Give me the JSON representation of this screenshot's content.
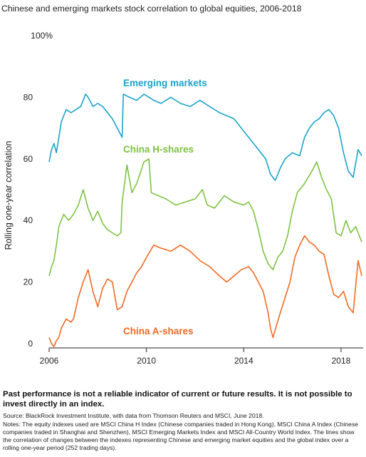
{
  "chart_data": {
    "type": "line",
    "title": "Chinese and emerging markets stock correlation to global equities, 2006-2018",
    "ylabel": "Rolling one-year correlation",
    "xlabel": "",
    "xlim": [
      2006.0,
      2018.85
    ],
    "ylim": [
      0,
      100
    ],
    "x_ticks": [
      "2006",
      "2010",
      "2014",
      "2018"
    ],
    "y_ticks": [
      "0",
      "20",
      "40",
      "60",
      "80",
      "100%"
    ],
    "grid": false,
    "legend": "inline labels",
    "series": [
      {
        "name": "Emerging markets",
        "color": "#1aa3c9",
        "x": [
          2006.0,
          2006.1,
          2006.2,
          2006.3,
          2006.4,
          2006.5,
          2006.6,
          2006.7,
          2006.9,
          2007.1,
          2007.3,
          2007.5,
          2007.6,
          2007.8,
          2008.0,
          2008.2,
          2008.4,
          2008.6,
          2008.8,
          2009.0,
          2009.05,
          2009.3,
          2009.6,
          2009.9,
          2010.1,
          2010.3,
          2010.6,
          2011.0,
          2011.4,
          2011.8,
          2012.2,
          2012.6,
          2013.0,
          2013.3,
          2013.6,
          2013.9,
          2014.1,
          2014.3,
          2014.6,
          2014.9,
          2015.1,
          2015.3,
          2015.5,
          2015.7,
          2016.0,
          2016.3,
          2016.5,
          2016.7,
          2016.9,
          2017.1,
          2017.3,
          2017.5,
          2017.7,
          2017.9,
          2018.1,
          2018.3,
          2018.5,
          2018.7,
          2018.85
        ],
        "values": [
          59,
          63,
          65,
          62,
          67,
          72,
          74,
          76,
          75,
          76,
          77,
          81,
          80,
          77,
          78,
          77,
          75,
          73,
          70,
          67,
          81,
          80,
          79,
          81,
          80,
          79,
          78,
          80,
          78,
          77,
          79,
          77,
          75,
          74,
          73,
          70,
          68,
          66,
          63,
          60,
          55,
          53,
          57,
          60,
          62,
          61,
          67,
          70,
          72,
          73,
          75,
          76,
          74,
          70,
          62,
          56,
          54,
          63,
          61
        ]
      },
      {
        "name": "China H-shares",
        "color": "#7ec242",
        "x": [
          2006.0,
          2006.1,
          2006.2,
          2006.3,
          2006.4,
          2006.5,
          2006.6,
          2006.8,
          2007.0,
          2007.2,
          2007.4,
          2007.6,
          2007.8,
          2008.0,
          2008.2,
          2008.4,
          2008.6,
          2008.8,
          2008.95,
          2009.0,
          2009.2,
          2009.4,
          2009.6,
          2009.9,
          2010.1,
          2010.2,
          2010.5,
          2010.8,
          2011.2,
          2011.6,
          2012.0,
          2012.3,
          2012.5,
          2012.8,
          2013.2,
          2013.6,
          2014.0,
          2014.2,
          2014.4,
          2014.6,
          2014.8,
          2015.0,
          2015.2,
          2015.4,
          2015.6,
          2015.8,
          2016.0,
          2016.2,
          2016.5,
          2016.8,
          2017.0,
          2017.2,
          2017.4,
          2017.6,
          2017.8,
          2018.0,
          2018.2,
          2018.4,
          2018.6,
          2018.85
        ],
        "values": [
          22,
          25,
          27,
          32,
          38,
          40,
          42,
          40,
          42,
          45,
          50,
          44,
          40,
          43,
          39,
          37,
          36,
          35,
          36,
          46,
          58,
          49,
          52,
          59,
          60,
          49,
          48,
          47,
          45,
          46,
          47,
          50,
          45,
          44,
          48,
          46,
          45,
          46,
          43,
          37,
          30,
          26,
          24,
          28,
          30,
          35,
          43,
          49,
          52,
          56,
          59,
          54,
          50,
          47,
          36,
          35,
          40,
          36,
          38,
          33
        ]
      },
      {
        "name": "China A-shares",
        "color": "#f06a24",
        "x": [
          2006.0,
          2006.1,
          2006.2,
          2006.3,
          2006.4,
          2006.5,
          2006.7,
          2006.9,
          2007.0,
          2007.2,
          2007.4,
          2007.6,
          2007.8,
          2008.0,
          2008.2,
          2008.4,
          2008.6,
          2008.8,
          2009.0,
          2009.2,
          2009.4,
          2009.6,
          2009.8,
          2010.0,
          2010.3,
          2010.6,
          2011.0,
          2011.4,
          2011.8,
          2012.2,
          2012.6,
          2013.0,
          2013.3,
          2013.6,
          2013.9,
          2014.2,
          2014.4,
          2014.6,
          2014.8,
          2015.0,
          2015.1,
          2015.2,
          2015.35,
          2015.5,
          2015.7,
          2015.9,
          2016.1,
          2016.3,
          2016.5,
          2016.7,
          2016.9,
          2017.1,
          2017.3,
          2017.5,
          2017.7,
          2017.9,
          2018.1,
          2018.3,
          2018.5,
          2018.7,
          2018.85
        ],
        "values": [
          2,
          0,
          -1,
          1,
          2,
          5,
          8,
          7,
          8,
          15,
          20,
          24,
          17,
          12,
          18,
          21,
          20,
          11,
          12,
          17,
          20,
          23,
          25,
          28,
          32,
          31,
          30,
          32,
          30,
          27,
          25,
          22,
          20,
          22,
          24,
          25,
          23,
          20,
          17,
          10,
          5,
          2,
          6,
          10,
          15,
          20,
          28,
          32,
          35,
          33,
          32,
          30,
          29,
          22,
          16,
          15,
          17,
          12,
          10,
          27,
          22
        ]
      }
    ]
  },
  "footer": {
    "disclaimer": "Past performance is not a reliable indicator of current or future results. It is not possible to invest directly in an index.",
    "source": "Source: BlackRock Investment Institute, with data from Thomson Reuters and MSCI, June 2018.",
    "notes": "Notes: The equity indexes used are MSCI China H Index (Chinese companies traded in Hong Kong), MSCI China A Index (Chinese companies traded in Shanghai and Shenzhen), MSCI Emerging Markets Index and MSCI All-Country World Index. The lines show the correlation of changes between the indexes representing Chinese and emerging market equities and the global index over a rolling one-year period (252 trading days)."
  }
}
